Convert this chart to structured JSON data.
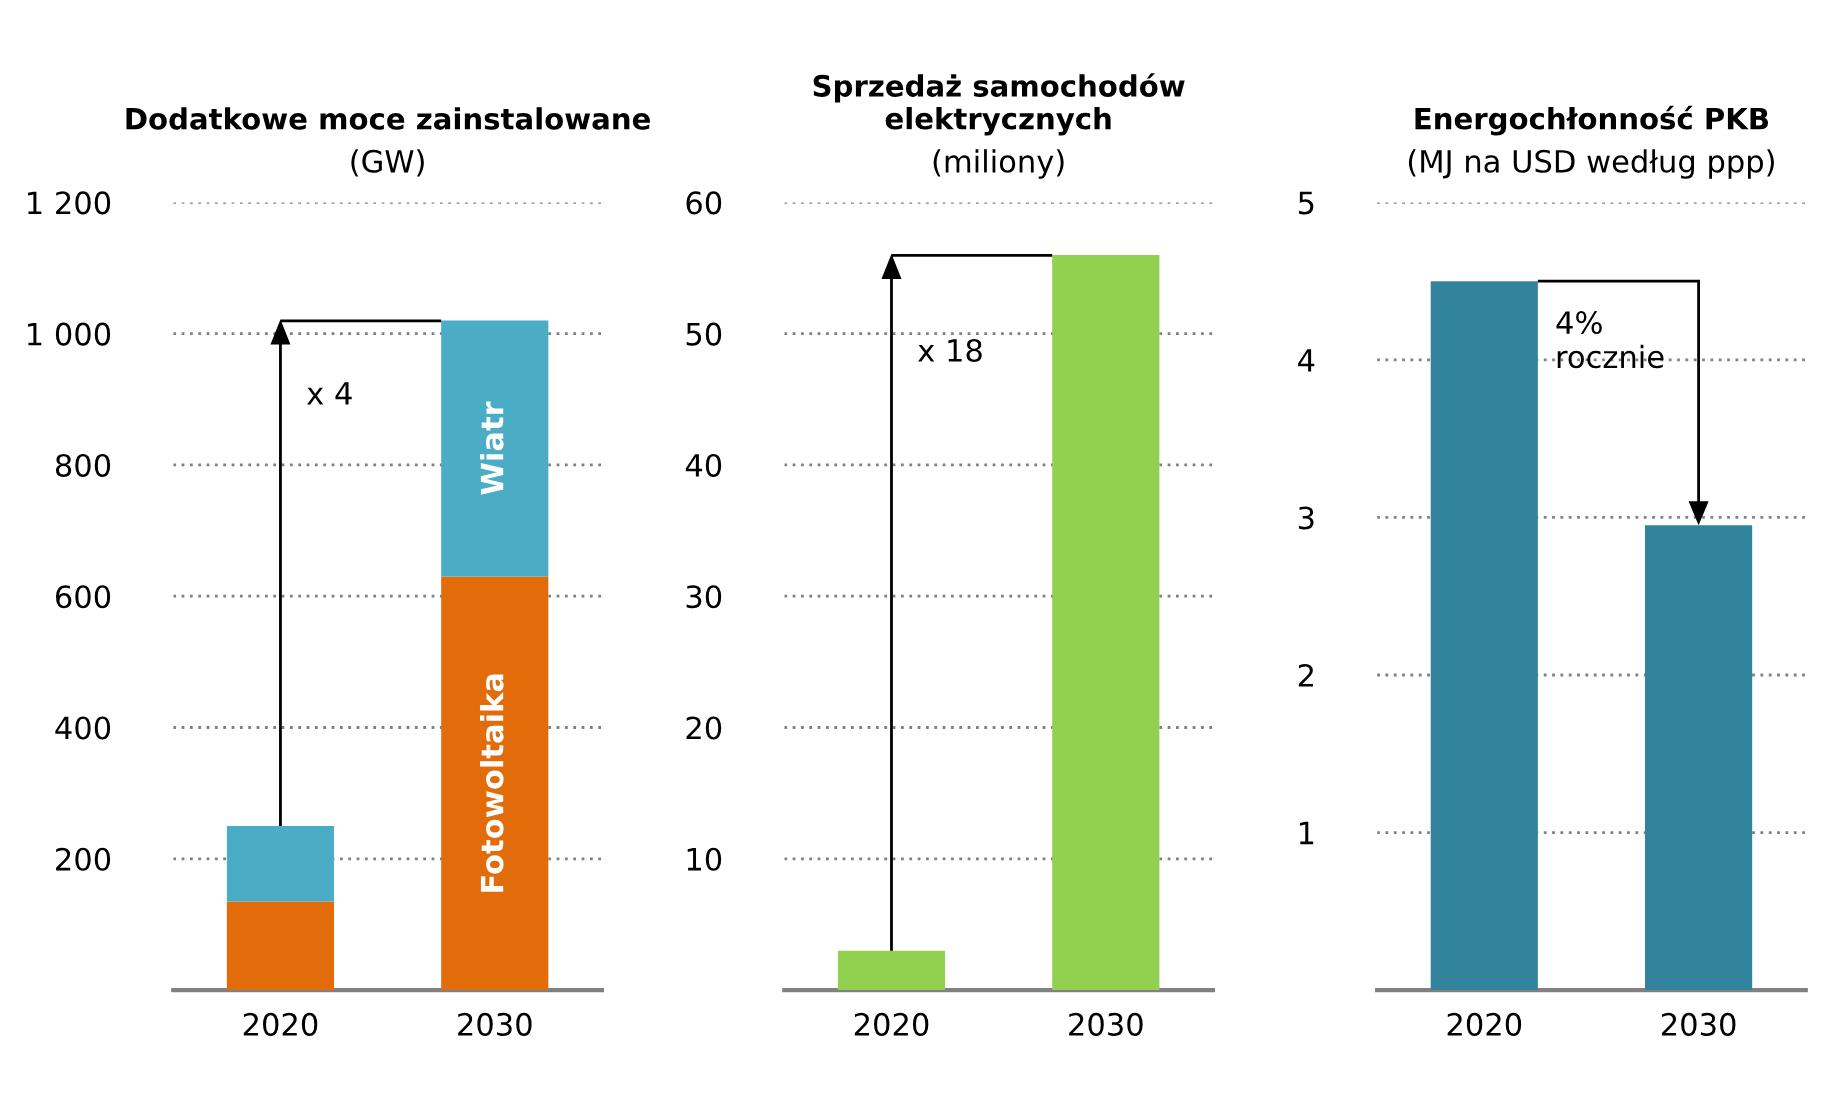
{
  "chart_data": [
    {
      "type": "bar",
      "title": "Dodatkowe moce zainstalowane",
      "subtitle": "(GW)",
      "categories": [
        "2020",
        "2030"
      ],
      "stacked": true,
      "series": [
        {
          "name": "Fotowoltaika",
          "color": "#e36c0a",
          "values": [
            135,
            630
          ]
        },
        {
          "name": "Wiatr",
          "color": "#4bacc6",
          "values": [
            115,
            390
          ]
        }
      ],
      "ylim": [
        0,
        1200
      ],
      "yticks": [
        200,
        400,
        600,
        800,
        {
          "value": 1000,
          "label": "1 000"
        },
        {
          "value": 1200,
          "label": "1 200"
        }
      ],
      "grid": "y",
      "legend": false,
      "annotations": [
        "x 4"
      ]
    },
    {
      "type": "bar",
      "title": "Sprzedaż samochodów elektrycznych",
      "subtitle": "(miliony)",
      "categories": [
        "2020",
        "2030"
      ],
      "series": [
        {
          "color": "#92d050",
          "values": [
            3,
            56
          ]
        }
      ],
      "ylim": [
        0,
        60
      ],
      "yticks": [
        10,
        20,
        30,
        40,
        50,
        60
      ],
      "grid": "y",
      "legend": false,
      "annotations": [
        "x 18"
      ]
    },
    {
      "type": "bar",
      "title": "Energochłonność PKB",
      "subtitle": "(MJ na USD według ppp)",
      "categories": [
        "2020",
        "2030"
      ],
      "series": [
        {
          "color": "#31849b",
          "values": [
            4.5,
            2.95
          ]
        }
      ],
      "ylim": [
        0,
        5
      ],
      "yticks": [
        1,
        2,
        3,
        4,
        5
      ],
      "grid": "y",
      "legend": false,
      "annotations": [
        "4%\nrocznie"
      ]
    }
  ]
}
